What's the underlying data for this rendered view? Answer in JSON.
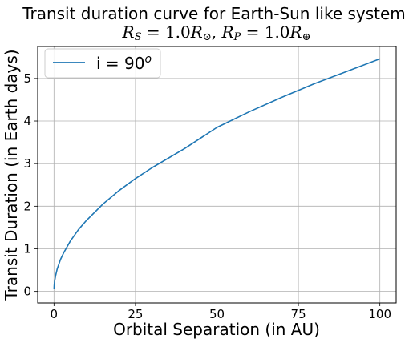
{
  "chart_data": {
    "type": "line",
    "title": "Transit duration curve for Earth-Sun like system",
    "subtitle": {
      "rs_symbol": "R",
      "rs_sub": "S",
      "rs_text": " = 1.0",
      "rs_unit": "R",
      "rs_unit_sub": "⊙",
      "separator": ", ",
      "rp_symbol": "R",
      "rp_sub": "P",
      "rp_text": " = 1.0",
      "rp_unit": "R",
      "rp_unit_sub": "⊕"
    },
    "xlabel": "Orbital Separation (in AU)",
    "ylabel": "Transit Duration (in Earth days)",
    "xlim": [
      -5,
      105
    ],
    "ylim": [
      -0.27,
      5.75
    ],
    "xticks": [
      0,
      25,
      50,
      75,
      100
    ],
    "yticks": [
      0,
      1,
      2,
      3,
      4,
      5
    ],
    "grid": true,
    "legend": {
      "position": "top-left",
      "label_text": "i = 90",
      "label_sup": "o"
    },
    "series": [
      {
        "name": "i = 90o",
        "color": "#1f77b4",
        "x": [
          0.01,
          0.05,
          0.1,
          0.2,
          0.5,
          1,
          2,
          3,
          5,
          7.5,
          10,
          15,
          20,
          25,
          30,
          40,
          50,
          60,
          70,
          80,
          90,
          100
        ],
        "y": [
          0.05,
          0.12,
          0.17,
          0.24,
          0.37,
          0.53,
          0.75,
          0.91,
          1.18,
          1.45,
          1.67,
          2.05,
          2.37,
          2.65,
          2.9,
          3.35,
          3.85,
          4.22,
          4.56,
          4.88,
          5.17,
          5.46
        ]
      }
    ]
  }
}
